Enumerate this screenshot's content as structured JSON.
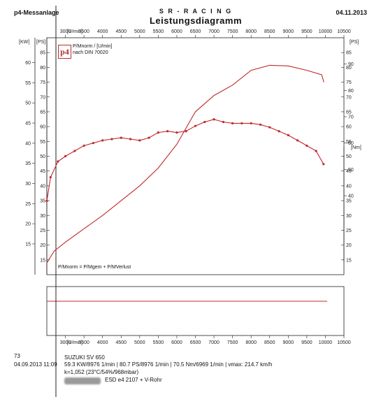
{
  "header": {
    "left": "p4-Messanlage",
    "center": "S R - R A C I N G",
    "title": "Leistungsdiagramm",
    "date": "04.11.2013"
  },
  "logo": {
    "text": "p4"
  },
  "legend": {
    "line1": "P/Mnorm / [U/min]",
    "line2": "nach DIN 70020",
    "formula": "P/Mnorm = P/Mgem + P/MVerlust"
  },
  "colors": {
    "curve": "#c0282a",
    "axis": "#222222"
  },
  "chart_data": {
    "type": "line",
    "x_unit_label": "[U/min]",
    "xlim": [
      2500,
      10500
    ],
    "x_ticks": [
      3000,
      3500,
      4000,
      4500,
      5000,
      5500,
      6000,
      6500,
      7000,
      7500,
      8000,
      8500,
      9000,
      9500,
      10000,
      10500
    ],
    "left_axes": {
      "kw_label": "[KW]",
      "ps_label": "[PS]",
      "ps_lim": [
        10,
        90
      ],
      "kw_ticks": [
        15,
        20,
        25,
        30,
        35,
        40,
        45,
        50,
        55,
        60
      ],
      "ps_ticks": [
        15,
        20,
        25,
        30,
        35,
        40,
        45,
        50,
        55,
        60,
        65,
        70,
        75,
        80,
        85
      ]
    },
    "right_axes": {
      "ps_label": "[PS]",
      "nm_label": "[Nm]",
      "ps_ticks": [
        15,
        20,
        25,
        30,
        35,
        40,
        45,
        50,
        55,
        60,
        65,
        70,
        75,
        80,
        85
      ],
      "nm_ticks": [
        40,
        50,
        60,
        70,
        80,
        90
      ],
      "nm_lim": [
        10,
        100
      ]
    },
    "series": [
      {
        "unit": "PS",
        "x": [
          2500,
          2700,
          3000,
          3500,
          4000,
          4500,
          5000,
          5500,
          6000,
          6500,
          7000,
          7500,
          8000,
          8500,
          9000,
          9500,
          9900,
          9960
        ],
        "y": [
          14,
          18,
          21,
          25.5,
          30,
          35,
          40,
          46,
          54,
          65,
          70.5,
          74,
          79,
          80.7,
          80.5,
          79,
          77.5,
          75
        ]
      },
      {
        "unit": "Nm",
        "markers": true,
        "x": [
          2500,
          2600,
          2800,
          3000,
          3250,
          3500,
          3750,
          4000,
          4250,
          4500,
          4750,
          5000,
          5250,
          5500,
          5750,
          6000,
          6250,
          6500,
          6750,
          7000,
          7250,
          7500,
          7750,
          8000,
          8250,
          8500,
          8750,
          9000,
          9250,
          9500,
          9750,
          9950
        ],
        "y": [
          38,
          47,
          53,
          55,
          57,
          59,
          60,
          61,
          61.5,
          62,
          61.5,
          61,
          62,
          64,
          64.5,
          64,
          64.5,
          66.5,
          68,
          69,
          68,
          67.5,
          67.5,
          67.5,
          67,
          66,
          64.5,
          63,
          61,
          59,
          57,
          52
        ]
      }
    ]
  },
  "footer": {
    "run_no": "73",
    "vehicle": "SUZUKI SV 650",
    "datetime": "04.09.2013  11:09",
    "results": "59.3 KW/8976 1/min  |  80.7 PS/8976 1/min  |  70.5 Nm/6969 1/min  |  vmax: 214.7 km/h",
    "conditions": "k=1,052  (23°C/54%/968mbar)",
    "setup": "ESD  e4 2107 + V-Rohr"
  }
}
